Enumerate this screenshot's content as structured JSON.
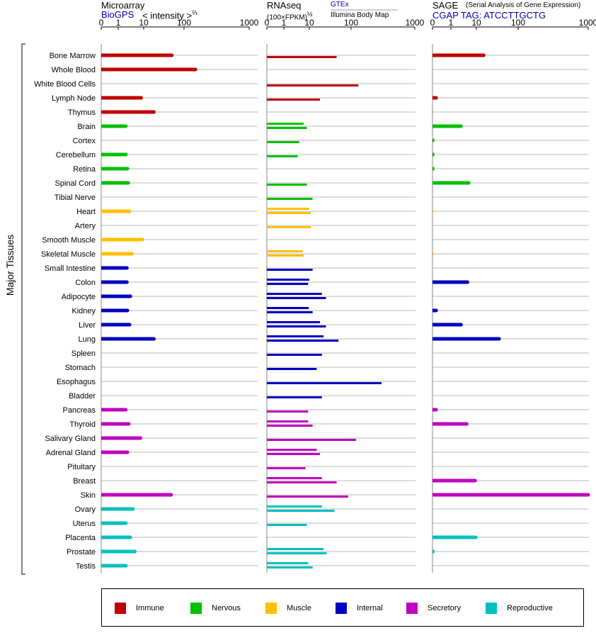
{
  "headers": {
    "microarray": {
      "title": "Microarray",
      "source": "BioGPS",
      "unit_text": "< intensity >",
      "unit_sup": "⅔"
    },
    "rnaseq": {
      "title": "RNAseq",
      "unit_text": "(100×FPKM)",
      "unit_sup": "½",
      "source_a": "GTEx",
      "source_b": "Illumina Body Map"
    },
    "sage": {
      "title": "SAGE",
      "subtitle": "(Serial Analysis of Gene Expression)",
      "tag_label": "CGAP TAG: ATCCTTGCTG"
    }
  },
  "y_group_label": "Major Tissues",
  "legend": [
    {
      "label": "Immune",
      "color": "#c00000"
    },
    {
      "label": "Nervous",
      "color": "#00c000"
    },
    {
      "label": "Muscle",
      "color": "#ffc000"
    },
    {
      "label": "Internal",
      "color": "#0000c0"
    },
    {
      "label": "Secretory",
      "color": "#c000c0"
    },
    {
      "label": "Reproductive",
      "color": "#00c0c0"
    }
  ],
  "chart_data": {
    "type": "bar",
    "orientation": "horizontal",
    "scale": "log-like (0 ... 1000)",
    "ticks": [
      "0",
      "1",
      "10",
      "100",
      "1000"
    ],
    "tick_values": [
      0,
      1,
      10,
      100,
      1000
    ],
    "categories": [
      "Bone Marrow",
      "Whole Blood",
      "White Blood Cells",
      "Lymph Node",
      "Thymus",
      "Brain",
      "Cortex",
      "Cerebellum",
      "Retina",
      "Spinal Cord",
      "Tibial Nerve",
      "Heart",
      "Artery",
      "Smooth Muscle",
      "Skeletal Muscle",
      "Small Intestine",
      "Colon",
      "Adipocyte",
      "Kidney",
      "Liver",
      "Lung",
      "Spleen",
      "Stomach",
      "Esophagus",
      "Bladder",
      "Pancreas",
      "Thyroid",
      "Salivary Gland",
      "Adrenal Gland",
      "Pituitary",
      "Breast",
      "Skin",
      "Ovary",
      "Uterus",
      "Placenta",
      "Prostate",
      "Testis"
    ],
    "category_groups": [
      "Immune",
      "Immune",
      "Immune",
      "Immune",
      "Immune",
      "Nervous",
      "Nervous",
      "Nervous",
      "Nervous",
      "Nervous",
      "Nervous",
      "Muscle",
      "Muscle",
      "Muscle",
      "Muscle",
      "Internal",
      "Internal",
      "Internal",
      "Internal",
      "Internal",
      "Internal",
      "Internal",
      "Internal",
      "Internal",
      "Internal",
      "Secretory",
      "Secretory",
      "Secretory",
      "Secretory",
      "Secretory",
      "Secretory",
      "Secretory",
      "Reproductive",
      "Reproductive",
      "Reproductive",
      "Reproductive",
      "Reproductive"
    ],
    "panels": [
      {
        "name": "Microarray (BioGPS)",
        "values": [
          50,
          150,
          null,
          8,
          18,
          2,
          null,
          2,
          2.3,
          2.5,
          null,
          2.8,
          null,
          9,
          3.5,
          2.2,
          2.2,
          3,
          2.3,
          2.8,
          18,
          null,
          null,
          null,
          null,
          2,
          2.6,
          7.5,
          2.3,
          null,
          null,
          48,
          3.8,
          2,
          3,
          4.5,
          2
        ]
      },
      {
        "name": "RNAseq (GTEx)",
        "values": [
          null,
          null,
          null,
          null,
          null,
          6,
          null,
          null,
          null,
          null,
          null,
          10,
          null,
          null,
          5.5,
          null,
          10,
          20,
          9.5,
          18,
          22,
          null,
          null,
          null,
          null,
          null,
          9,
          null,
          15,
          null,
          20,
          null,
          20,
          null,
          null,
          22,
          9
        ]
      },
      {
        "name": "RNAseq (Illumina Body Map)",
        "values": [
          45,
          null,
          130,
          18,
          null,
          8,
          4,
          3.5,
          null,
          8,
          12,
          11,
          11,
          null,
          6,
          12,
          9,
          25,
          12,
          25,
          50,
          20,
          15,
          300,
          20,
          9,
          12,
          120,
          18,
          7,
          45,
          85,
          40,
          8,
          null,
          26,
          12
        ]
      },
      {
        "name": "SAGE",
        "values": [
          15,
          null,
          null,
          0.2,
          null,
          2.5,
          0.1,
          0.1,
          0.1,
          5,
          null,
          0.05,
          null,
          null,
          0.05,
          null,
          4.5,
          null,
          0.2,
          2.5,
          35,
          null,
          null,
          null,
          null,
          0.2,
          4.2,
          null,
          null,
          null,
          9,
          1000,
          null,
          null,
          9.5,
          0.1,
          null
        ]
      }
    ]
  }
}
